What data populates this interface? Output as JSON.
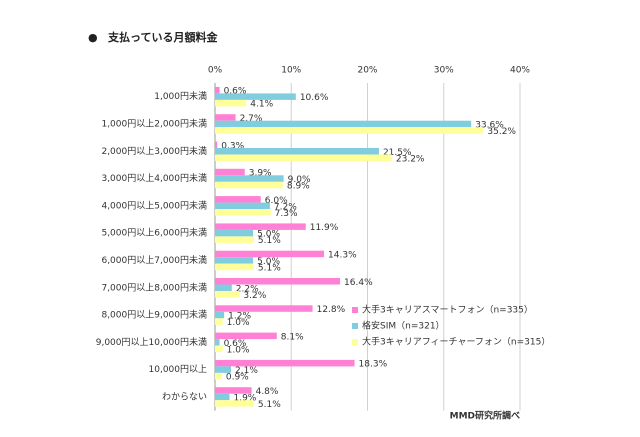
{
  "chart_data": {
    "type": "hbar",
    "bullet": "●",
    "title": "支払っている月額料金",
    "source": "MMD研究所調べ",
    "categories": [
      "1,000円未満",
      "1,000円以上2,000円未満",
      "2,000円以上3,000円未満",
      "3,000円以上4,000円未満",
      "4,000円以上5,000円未満",
      "5,000円以上6,000円未満",
      "6,000円以上7,000円未満",
      "7,000円以上8,000円未満",
      "8,000円以上9,000円未満",
      "9,000円以上10,000円未満",
      "10,000円以上",
      "わからない"
    ],
    "series": [
      {
        "name": "大手3キャリアスマートフォン（n=335）",
        "color": "#ff80d5",
        "values": [
          0.6,
          2.7,
          0.3,
          3.9,
          6.0,
          11.9,
          14.3,
          16.4,
          12.8,
          8.1,
          18.3,
          4.8
        ],
        "value_labels": [
          "0.6%",
          "2.7%",
          "0.3%",
          "3.9%",
          "6.0%",
          "11.9%",
          "14.3%",
          "16.4%",
          "12.8%",
          "8.1%",
          "18.3%",
          "4.8%"
        ]
      },
      {
        "name": "格安SIM（n=321）",
        "color": "#80cde0",
        "values": [
          10.6,
          33.6,
          21.5,
          9.0,
          7.2,
          5.0,
          5.0,
          2.2,
          1.2,
          0.6,
          2.1,
          1.9
        ],
        "value_labels": [
          "10.6%",
          "33.6%",
          "21.5%",
          "9.0%",
          "7.2%",
          "5.0%",
          "5.0%",
          "2.2%",
          "1.2%",
          "0.6%",
          "2.1%",
          "1.9%"
        ]
      },
      {
        "name": "大手3キャリアフィーチャーフォン（n=315）",
        "color": "#ffff99",
        "values": [
          4.1,
          35.2,
          23.2,
          8.9,
          7.3,
          5.1,
          5.1,
          3.2,
          1.0,
          1.0,
          0.9,
          5.1
        ],
        "value_labels": [
          "4.1%",
          "35.2%",
          "23.2%",
          "8.9%",
          "7.3%",
          "5.1%",
          "5.1%",
          "3.2%",
          "1.0%",
          "1.0%",
          "0.9%",
          "5.1%"
        ]
      }
    ],
    "xlim": [
      0,
      40
    ],
    "xticks": [
      {
        "value": 0,
        "label": "0%"
      },
      {
        "value": 10,
        "label": "10%"
      },
      {
        "value": 20,
        "label": "20%"
      },
      {
        "value": 30,
        "label": "30%"
      },
      {
        "value": 40,
        "label": "40%"
      }
    ],
    "grid": true
  }
}
